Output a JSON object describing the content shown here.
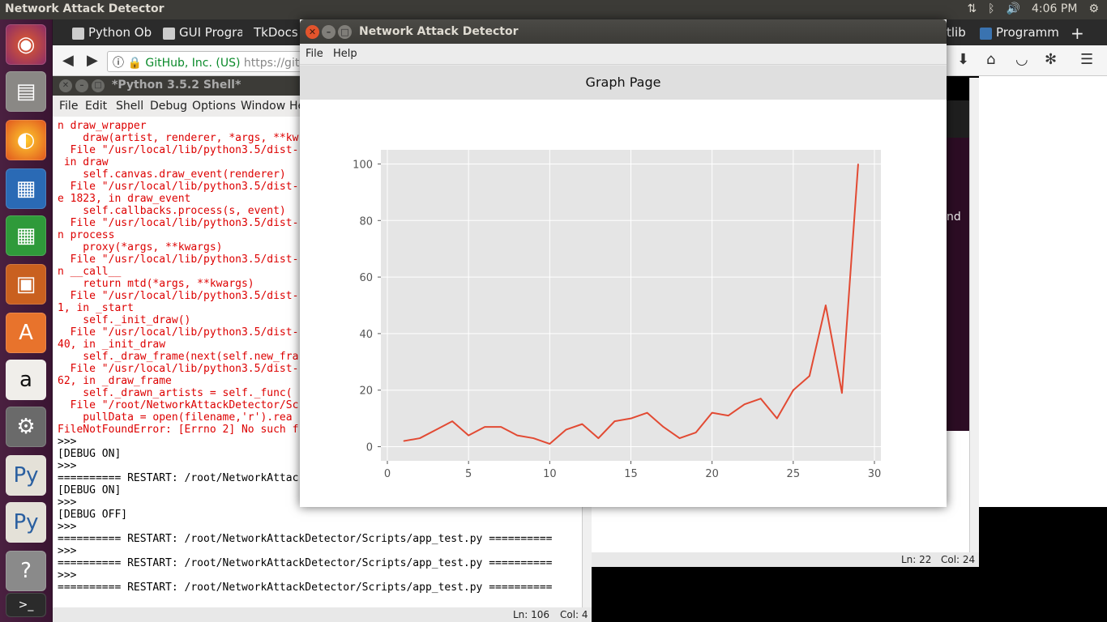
{
  "top_panel": {
    "app_title": "Network Attack Detector",
    "clock": "4:06 PM",
    "tray_icons": [
      "network-icon",
      "bluetooth-icon",
      "volume-icon",
      "settings-icon"
    ]
  },
  "launcher": {
    "items": [
      "ubuntu-dash-icon",
      "files-icon",
      "firefox-icon",
      "writer-icon",
      "calc-icon",
      "impress-icon",
      "software-center-icon",
      "amazon-icon",
      "system-settings-icon",
      "python-file-icon",
      "python-file-icon",
      "help-icon",
      "terminal-icon"
    ]
  },
  "browser": {
    "tabs": [
      {
        "label": "Python Ob"
      },
      {
        "label": "GUI Progra"
      },
      {
        "label": "TkDocs -"
      },
      {
        "label": "tlib"
      },
      {
        "label": "Programm"
      }
    ],
    "new_tab": "+",
    "secure_label": "GitHub, Inc. (US)",
    "url": "https://github"
  },
  "background": {
    "dark_text": "nd"
  },
  "shell": {
    "title": "*Python 3.5.2 Shell*",
    "menu": [
      "File",
      "Edit",
      "Shell",
      "Debug",
      "Options",
      "Window",
      "He"
    ],
    "lines": [
      {
        "t": "n draw_wrapper",
        "c": "err"
      },
      {
        "t": "    draw(artist, renderer, *args, **kw",
        "c": "err"
      },
      {
        "t": "  File \"/usr/local/lib/python3.5/dist-",
        "c": "err"
      },
      {
        "t": " in draw",
        "c": "err"
      },
      {
        "t": "    self.canvas.draw_event(renderer)",
        "c": "err"
      },
      {
        "t": "  File \"/usr/local/lib/python3.5/dist-",
        "c": "err"
      },
      {
        "t": "e 1823, in draw_event",
        "c": "err"
      },
      {
        "t": "    self.callbacks.process(s, event)",
        "c": "err"
      },
      {
        "t": "  File \"/usr/local/lib/python3.5/dist-",
        "c": "err"
      },
      {
        "t": "n process",
        "c": "err"
      },
      {
        "t": "    proxy(*args, **kwargs)",
        "c": "err"
      },
      {
        "t": "  File \"/usr/local/lib/python3.5/dist-",
        "c": "err"
      },
      {
        "t": "n __call__",
        "c": "err"
      },
      {
        "t": "    return mtd(*args, **kwargs)",
        "c": "err"
      },
      {
        "t": "  File \"/usr/local/lib/python3.5/dist-",
        "c": "err"
      },
      {
        "t": "1, in _start",
        "c": "err"
      },
      {
        "t": "    self._init_draw()",
        "c": "err"
      },
      {
        "t": "  File \"/usr/local/lib/python3.5/dist-",
        "c": "err"
      },
      {
        "t": "40, in _init_draw",
        "c": "err"
      },
      {
        "t": "    self._draw_frame(next(self.new_fra",
        "c": "err"
      },
      {
        "t": "  File \"/usr/local/lib/python3.5/dist-",
        "c": "err"
      },
      {
        "t": "62, in _draw_frame",
        "c": "err"
      },
      {
        "t": "    self._drawn_artists = self._func(",
        "c": "err"
      },
      {
        "t": "  File \"/root/NetworkAttackDetector/Sc",
        "c": "err"
      },
      {
        "t": "    pullData = open(filename,'r').rea",
        "c": "err"
      },
      {
        "t": "FileNotFoundError: [Errno 2] No such f",
        "c": "err"
      },
      {
        "t": ">>>",
        "c": "out"
      },
      {
        "t": "[DEBUG ON]",
        "c": "out"
      },
      {
        "t": ">>>",
        "c": "out"
      },
      {
        "t": "========== RESTART: /root/NetworkAttac",
        "c": "out"
      },
      {
        "t": "[DEBUG ON]",
        "c": "out"
      },
      {
        "t": ">>>",
        "c": "out"
      },
      {
        "t": "[DEBUG OFF]",
        "c": "out"
      },
      {
        "t": ">>>",
        "c": "out"
      },
      {
        "t": "========== RESTART: /root/NetworkAttackDetector/Scripts/app_test.py ==========",
        "c": "out"
      },
      {
        "t": ">>>",
        "c": "out"
      },
      {
        "t": "========== RESTART: /root/NetworkAttackDetector/Scripts/app_test.py ==========",
        "c": "out"
      },
      {
        "t": ">>>",
        "c": "out"
      },
      {
        "t": "========== RESTART: /root/NetworkAttackDetector/Scripts/app_test.py ==========",
        "c": "out"
      }
    ],
    "status_line": "Ln: 106",
    "status_col": "Col: 4"
  },
  "background_editor": {
    "status_line": "Ln: 22",
    "status_col": "Col: 24"
  },
  "app": {
    "title": "Network Attack Detector",
    "menu": [
      "File",
      "Help"
    ],
    "page_title": "Graph Page"
  },
  "chart_data": {
    "type": "line",
    "title": "",
    "xlabel": "",
    "ylabel": "",
    "x": [
      1,
      2,
      3,
      4,
      5,
      6,
      7,
      8,
      9,
      10,
      11,
      12,
      13,
      14,
      15,
      16,
      17,
      18,
      19,
      20,
      21,
      22,
      23,
      24,
      25,
      26,
      27,
      28,
      29
    ],
    "series": [
      {
        "values": [
          2,
          3,
          6,
          9,
          4,
          7,
          7,
          4,
          3,
          1,
          6,
          8,
          3,
          9,
          10,
          12,
          7,
          3,
          5,
          12,
          11,
          15,
          17,
          10,
          20,
          25,
          50,
          19,
          100
        ]
      }
    ],
    "xlim": [
      -0.4,
      30.4
    ],
    "ylim": [
      -5,
      105
    ],
    "xticks": [
      0,
      5,
      10,
      15,
      20,
      25,
      30
    ],
    "yticks": [
      0,
      20,
      40,
      60,
      80,
      100
    ],
    "grid": true,
    "colors": {
      "line": "#e24a33",
      "background": "#e5e5e5",
      "grid": "#ffffff",
      "tick_text": "#555555"
    }
  }
}
